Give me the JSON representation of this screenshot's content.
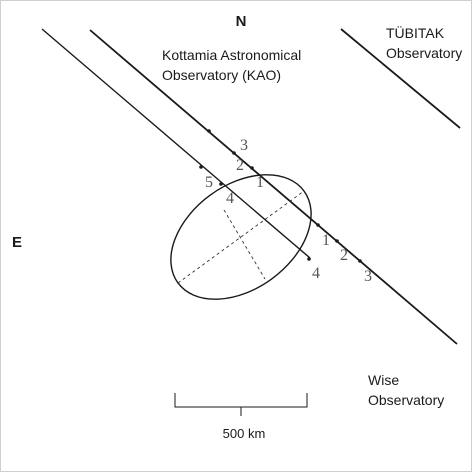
{
  "compass": {
    "north": "N",
    "east": "E"
  },
  "observatories": {
    "kao": {
      "line1": "Kottamia Astronomical",
      "line2": "Observatory (KAO)"
    },
    "tubitak": {
      "line1": "TÜBITAK",
      "line2": "Observatory"
    },
    "wise": {
      "line1": "Wise",
      "line2": "Observatory"
    }
  },
  "scale_bar": {
    "label": "500 km"
  },
  "tracks": {
    "kao": [
      "3",
      "2",
      "1",
      "1",
      "2",
      "3"
    ],
    "wise": [
      "5",
      "4",
      "4"
    ]
  },
  "colors": {
    "ink": "#1a1a1a",
    "frame": "#cfcfcf"
  }
}
